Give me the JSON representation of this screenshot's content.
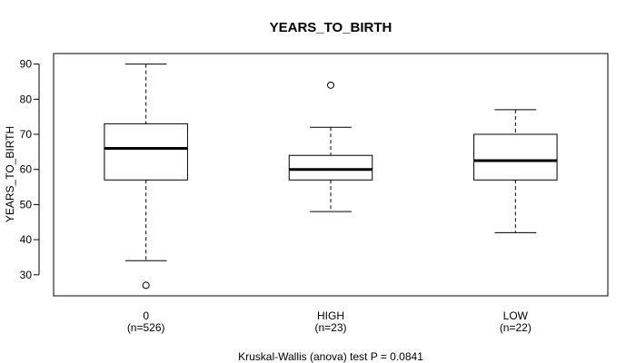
{
  "chart_data": {
    "type": "box",
    "title": "YEARS_TO_BIRTH",
    "xlabel": "",
    "ylabel": "YEARS_TO_BIRTH",
    "ylim": [
      24,
      93
    ],
    "yticks": [
      30,
      40,
      50,
      60,
      70,
      80,
      90
    ],
    "grid": false,
    "categories": [
      "0",
      "HIGH",
      "LOW"
    ],
    "counts": [
      "(n=526)",
      "(n=23)",
      "(n=22)"
    ],
    "boxes": [
      {
        "category": "0",
        "whisker_low": 34,
        "q1": 57,
        "median": 66,
        "q3": 73,
        "whisker_high": 90,
        "outliers": [
          27
        ]
      },
      {
        "category": "HIGH",
        "whisker_low": 48,
        "q1": 57,
        "median": 60,
        "q3": 64,
        "whisker_high": 72,
        "outliers": [
          84
        ]
      },
      {
        "category": "LOW",
        "whisker_low": 42,
        "q1": 57,
        "median": 62.5,
        "q3": 70,
        "whisker_high": 77,
        "outliers": []
      }
    ],
    "footnote": "Kruskal-Wallis (anova) test P = 0.0841"
  }
}
